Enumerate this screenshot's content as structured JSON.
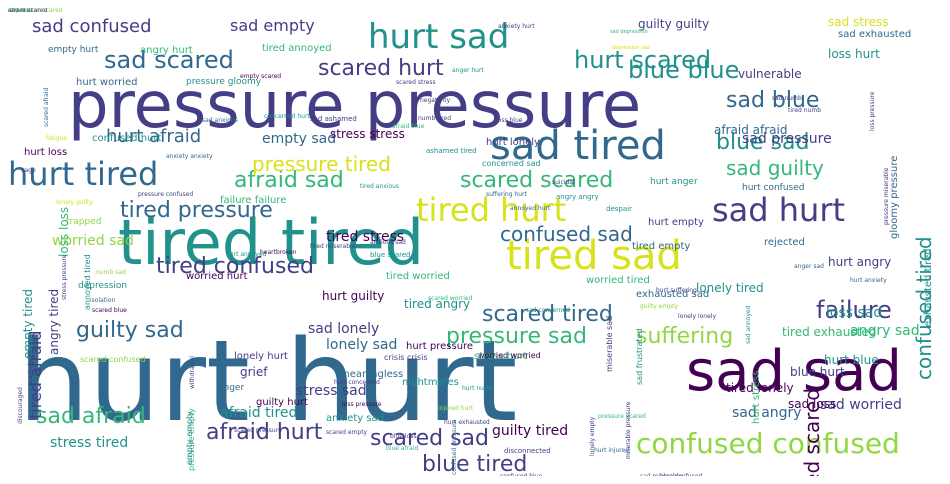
{
  "colors": {
    "c1": "#440154",
    "c2": "#433e85",
    "c3": "#31688e",
    "c4": "#21918c",
    "c5": "#35b779",
    "c6": "#90d743",
    "c7": "#d7e219",
    "c8": "#6ece58",
    "c9": "#2a788e"
  },
  "words": [
    {
      "text": "hurt hurt",
      "weight": 90,
      "color": "c3"
    },
    {
      "text": "pressure pressure",
      "weight": 62,
      "color": "c2"
    },
    {
      "text": "tired tired",
      "weight": 60,
      "color": "c4"
    },
    {
      "text": "sad sad",
      "weight": 55,
      "color": "c1"
    },
    {
      "text": "sad tired",
      "weight": 40,
      "color": "c3"
    },
    {
      "text": "tired sad",
      "weight": 40,
      "color": "c7"
    },
    {
      "text": "hurt sad",
      "weight": 34,
      "color": "c4"
    },
    {
      "text": "hurt tired",
      "weight": 32,
      "color": "c3"
    },
    {
      "text": "tired hurt",
      "weight": 32,
      "color": "c7"
    },
    {
      "text": "sad hurt",
      "weight": 32,
      "color": "c2"
    },
    {
      "text": "confused confused",
      "weight": 28,
      "color": "c6"
    },
    {
      "text": "hurt scared",
      "weight": 24,
      "color": "c4"
    },
    {
      "text": "sad scared",
      "weight": 24,
      "color": "c3"
    },
    {
      "text": "scared hurt",
      "weight": 24,
      "color": "c2"
    },
    {
      "text": "blue blue",
      "weight": 24,
      "color": "c4"
    },
    {
      "text": "sad blue",
      "weight": 22,
      "color": "c3"
    },
    {
      "text": "blue sad",
      "weight": 22,
      "color": "c4"
    },
    {
      "text": "afraid sad",
      "weight": 22,
      "color": "c5"
    },
    {
      "text": "scared scared",
      "weight": 22,
      "color": "c5"
    },
    {
      "text": "tired pressure",
      "weight": 22,
      "color": "c3"
    },
    {
      "text": "confused sad",
      "weight": 22,
      "color": "c3"
    },
    {
      "text": "tired confused",
      "weight": 22,
      "color": "c2"
    },
    {
      "text": "scared tired",
      "weight": 22,
      "color": "c3"
    },
    {
      "text": "guilty sad",
      "weight": 22,
      "color": "c3"
    },
    {
      "text": "pressure sad",
      "weight": 22,
      "color": "c5"
    },
    {
      "text": "suffering",
      "weight": 22,
      "color": "c6"
    },
    {
      "text": "failure",
      "weight": 22,
      "color": "c2"
    },
    {
      "text": "scared sad",
      "weight": 22,
      "color": "c2"
    },
    {
      "text": "afraid hurt",
      "weight": 22,
      "color": "c2"
    },
    {
      "text": "blue tired",
      "weight": 22,
      "color": "c2"
    },
    {
      "text": "sad afraid",
      "weight": 20,
      "color": "c5"
    },
    {
      "text": "pressure tired",
      "weight": 20,
      "color": "c7"
    },
    {
      "text": "sad guilty",
      "weight": 18,
      "color": "c5"
    },
    {
      "text": "hurt afraid",
      "weight": 18,
      "color": "c3"
    },
    {
      "text": "sad confused",
      "weight": 18,
      "color": "c2"
    },
    {
      "text": "sad empty",
      "weight": 16,
      "color": "c2"
    },
    {
      "text": "worried sad",
      "weight": 14,
      "color": "c6"
    },
    {
      "text": "lonely sad",
      "weight": 14,
      "color": "c3"
    },
    {
      "text": "stress tired",
      "weight": 14,
      "color": "c4"
    },
    {
      "text": "angry sad",
      "weight": 14,
      "color": "c5"
    },
    {
      "text": "loss sad",
      "weight": 14,
      "color": "c4"
    },
    {
      "text": "sad lonely",
      "weight": 14,
      "color": "c2"
    },
    {
      "text": "sad worried",
      "weight": 14,
      "color": "c2"
    },
    {
      "text": "sad angry",
      "weight": 13,
      "color": "c3"
    },
    {
      "text": "stress sad",
      "weight": 14,
      "color": "c2"
    },
    {
      "text": "afraid tired",
      "weight": 14,
      "color": "c4"
    },
    {
      "text": "tired stress",
      "weight": 14,
      "color": "c1"
    },
    {
      "text": "empty sad",
      "weight": 14,
      "color": "c3"
    },
    {
      "text": "stress stress",
      "weight": 12,
      "color": "c1"
    },
    {
      "text": "sad pressure",
      "weight": 14,
      "color": "c2"
    },
    {
      "text": "guilty tired",
      "weight": 14,
      "color": "c1"
    },
    {
      "text": "lonely tired",
      "weight": 12,
      "color": "c4"
    },
    {
      "text": "afraid afraid",
      "weight": 12,
      "color": "c3"
    },
    {
      "text": "hurt guilty",
      "weight": 12,
      "color": "c1"
    },
    {
      "text": "sad stress",
      "weight": 12,
      "color": "c7"
    },
    {
      "text": "sad loss",
      "weight": 12,
      "color": "c1"
    },
    {
      "text": "loss hurt",
      "weight": 12,
      "color": "c4"
    },
    {
      "text": "grief",
      "weight": 12,
      "color": "c2"
    },
    {
      "text": "guilty guilty",
      "weight": 12,
      "color": "c2"
    },
    {
      "text": "tired lonely",
      "weight": 12,
      "color": "c1"
    },
    {
      "text": "hurt angry",
      "weight": 12,
      "color": "c2"
    },
    {
      "text": "blue hurt",
      "weight": 12,
      "color": "c2"
    },
    {
      "text": "tired exhausted",
      "weight": 12,
      "color": "c5"
    },
    {
      "text": "vulnerable",
      "weight": 12,
      "color": "c2"
    },
    {
      "text": "sad exhausted",
      "weight": 10,
      "color": "c3"
    },
    {
      "text": "hurt blue",
      "weight": 12,
      "color": "c4"
    },
    {
      "text": "tired angry",
      "weight": 12,
      "color": "c4"
    },
    {
      "text": "hurt lonely",
      "weight": 10,
      "color": "c2"
    },
    {
      "text": "tired worried",
      "weight": 10,
      "color": "c5"
    },
    {
      "text": "worried tired",
      "weight": 10,
      "color": "c5"
    },
    {
      "text": "worried hurt",
      "weight": 10,
      "color": "c1"
    },
    {
      "text": "tired empty",
      "weight": 10,
      "color": "c3"
    },
    {
      "text": "hurt empty",
      "weight": 10,
      "color": "c2"
    },
    {
      "text": "empty hurt",
      "weight": 9,
      "color": "c3"
    },
    {
      "text": "angry hurt",
      "weight": 10,
      "color": "c5"
    },
    {
      "text": "tired annoyed",
      "weight": 10,
      "color": "c5"
    },
    {
      "text": "hurt worried",
      "weight": 10,
      "color": "c3"
    },
    {
      "text": "pressure gloomy",
      "weight": 9,
      "color": "c4"
    },
    {
      "text": "confused hurt",
      "weight": 10,
      "color": "c4"
    },
    {
      "text": "hurt loss",
      "weight": 10,
      "color": "c1"
    },
    {
      "text": "failure failure",
      "weight": 10,
      "color": "c5"
    },
    {
      "text": "hurt anger",
      "weight": 9,
      "color": "c4"
    },
    {
      "text": "hurt confused",
      "weight": 9,
      "color": "c3"
    },
    {
      "text": "rejected",
      "weight": 10,
      "color": "c3"
    },
    {
      "text": "exhausted sad",
      "weight": 10,
      "color": "c3"
    },
    {
      "text": "lonely hurt",
      "weight": 10,
      "color": "c2"
    },
    {
      "text": "stress hurt",
      "weight": 10,
      "color": "c5"
    },
    {
      "text": "hurt pressure",
      "weight": 10,
      "color": "c1"
    },
    {
      "text": "meaningless",
      "weight": 10,
      "color": "c3"
    },
    {
      "text": "guilty hurt",
      "weight": 10,
      "color": "c1"
    },
    {
      "text": "anxiety sad",
      "weight": 10,
      "color": "c4"
    },
    {
      "text": "crisis crisis",
      "weight": 8,
      "color": "c2"
    },
    {
      "text": "worried worried",
      "weight": 8,
      "color": "c1"
    },
    {
      "text": "nightmares",
      "weight": 10,
      "color": "c4"
    },
    {
      "text": "scared confused",
      "weight": 8,
      "color": "c6"
    },
    {
      "text": "anger",
      "weight": 9,
      "color": "c3"
    },
    {
      "text": "trapped",
      "weight": 9,
      "color": "c6"
    },
    {
      "text": "depression",
      "weight": 9,
      "color": "c4"
    },
    {
      "text": "empty tired",
      "weight": 12,
      "color": "c4"
    },
    {
      "text": "loss loss",
      "weight": 12,
      "color": "c5"
    },
    {
      "text": "tired afraid",
      "weight": 16,
      "color": "c2"
    },
    {
      "text": "angry tired",
      "weight": 12,
      "color": "c2"
    },
    {
      "text": "annoyed tired",
      "weight": 8,
      "color": "c4"
    },
    {
      "text": "confused tired",
      "weight": 20,
      "color": "c4"
    },
    {
      "text": "tired scared",
      "weight": 20,
      "color": "c1"
    },
    {
      "text": "exhausted tired",
      "weight": 10,
      "color": "c4"
    },
    {
      "text": "gloomy pressure",
      "weight": 10,
      "color": "c3"
    },
    {
      "text": "hurt stress",
      "weight": 10,
      "color": "c5"
    },
    {
      "text": "pressure empty",
      "weight": 8,
      "color": "c5"
    },
    {
      "text": "empty empty",
      "weight": 8,
      "color": "c4"
    },
    {
      "text": "concerned sad",
      "weight": 8,
      "color": "c4"
    },
    {
      "text": "ashamed tired",
      "weight": 7,
      "color": "c4"
    },
    {
      "text": "sad ashamed",
      "weight": 7,
      "color": "c2"
    },
    {
      "text": "sad anxious",
      "weight": 6,
      "color": "c3"
    },
    {
      "text": "anxiety anxiety",
      "weight": 6,
      "color": "c3"
    },
    {
      "text": "suffering hurt",
      "weight": 6,
      "color": "c3"
    },
    {
      "text": "angry angry",
      "weight": 7,
      "color": "c4"
    },
    {
      "text": "annoyed hurt",
      "weight": 6,
      "color": "c3"
    },
    {
      "text": "despair",
      "weight": 7,
      "color": "c4"
    },
    {
      "text": "hurt annoyed",
      "weight": 6,
      "color": "c4"
    },
    {
      "text": "heartbroken",
      "weight": 6,
      "color": "c1"
    },
    {
      "text": "tired miserable",
      "weight": 6,
      "color": "c2"
    },
    {
      "text": "blue scared",
      "weight": 7,
      "color": "c4"
    },
    {
      "text": "hurt suffering",
      "weight": 6,
      "color": "c2"
    },
    {
      "text": "guilty empty",
      "weight": 6,
      "color": "c6"
    },
    {
      "text": "lonely lonely",
      "weight": 6,
      "color": "c2"
    },
    {
      "text": "hurt concerned",
      "weight": 6,
      "color": "c2"
    },
    {
      "text": "scared pressure",
      "weight": 6,
      "color": "c2"
    },
    {
      "text": "scared empty",
      "weight": 6,
      "color": "c2"
    },
    {
      "text": "blue loss",
      "weight": 6,
      "color": "c2"
    },
    {
      "text": "blue afraid",
      "weight": 6,
      "color": "c5"
    },
    {
      "text": "disconnected",
      "weight": 7,
      "color": "c2"
    },
    {
      "text": "confused blue",
      "weight": 6,
      "color": "c2"
    },
    {
      "text": "hurt injured",
      "weight": 6,
      "color": "c3"
    },
    {
      "text": "sad miserable",
      "weight": 6,
      "color": "c3"
    },
    {
      "text": "blue confused",
      "weight": 6,
      "color": "c2"
    },
    {
      "text": "pressure scared",
      "weight": 6,
      "color": "c5"
    },
    {
      "text": "hurt exhausted",
      "weight": 6,
      "color": "c2"
    },
    {
      "text": "hurt numb",
      "weight": 6,
      "color": "c4"
    },
    {
      "text": "injured hurt",
      "weight": 6,
      "color": "c6"
    },
    {
      "text": "loss pressure",
      "weight": 6,
      "color": "c1"
    },
    {
      "text": "scared worried",
      "weight": 6,
      "color": "c5"
    },
    {
      "text": "anger sad",
      "weight": 6,
      "color": "c3"
    },
    {
      "text": "hurt anxiety",
      "weight": 6,
      "color": "c3"
    },
    {
      "text": "numb sad",
      "weight": 6,
      "color": "c6"
    },
    {
      "text": "scared blue",
      "weight": 6,
      "color": "c1"
    },
    {
      "text": "isolation",
      "weight": 6,
      "color": "c3"
    },
    {
      "text": "anxiety hurt",
      "weight": 6,
      "color": "c2"
    },
    {
      "text": "sad depression",
      "weight": 6,
      "color": "c5"
    },
    {
      "text": "depression sad",
      "weight": 5,
      "color": "c7"
    },
    {
      "text": "anger hurt",
      "weight": 6,
      "color": "c4"
    },
    {
      "text": "empty scared",
      "weight": 5,
      "color": "c1"
    },
    {
      "text": "scared stress",
      "weight": 6,
      "color": "c2"
    },
    {
      "text": "negativity",
      "weight": 6,
      "color": "c2"
    },
    {
      "text": "sad numb",
      "weight": 6,
      "color": "c2"
    },
    {
      "text": "tired numb",
      "weight": 6,
      "color": "c2"
    },
    {
      "text": "loss blue",
      "weight": 6,
      "color": "c2"
    },
    {
      "text": "afraid blue",
      "weight": 6,
      "color": "c5"
    },
    {
      "text": "concerned hurt",
      "weight": 6,
      "color": "c4"
    },
    {
      "text": "numb tired",
      "weight": 6,
      "color": "c2"
    },
    {
      "text": "fatigue",
      "weight": 6,
      "color": "c7"
    },
    {
      "text": "rage",
      "weight": 6,
      "color": "c2"
    },
    {
      "text": "pressure confused",
      "weight": 6,
      "color": "c2"
    },
    {
      "text": "lonely guilty",
      "weight": 6,
      "color": "c7"
    },
    {
      "text": "tired anxious",
      "weight": 6,
      "color": "c4"
    },
    {
      "text": "anxious sad",
      "weight": 6,
      "color": "c2"
    },
    {
      "text": "suicidal",
      "weight": 6,
      "color": "c2"
    },
    {
      "text": "miserable sad",
      "weight": 6,
      "color": "c2"
    },
    {
      "text": "sad frustrated",
      "weight": 6,
      "color": "c4"
    },
    {
      "text": "sad annoyed",
      "weight": 8,
      "color": "c4"
    },
    {
      "text": "sad concerned",
      "weight": 8,
      "color": "c4"
    },
    {
      "text": "loss pressure",
      "weight": 6,
      "color": "c2"
    },
    {
      "text": "worried sad",
      "weight": 6,
      "color": "c2"
    },
    {
      "text": "discouraged",
      "weight": 6,
      "color": "c2"
    },
    {
      "text": "withdrawal",
      "weight": 6,
      "color": "c2"
    },
    {
      "text": "stress pressure",
      "weight": 6,
      "color": "c2"
    },
    {
      "text": "confused pressure",
      "weight": 6,
      "color": "c3"
    },
    {
      "text": "scared afraid",
      "weight": 6,
      "color": "c3"
    },
    {
      "text": "pressure miserable",
      "weight": 6,
      "color": "c2"
    },
    {
      "text": "miserable pressure",
      "weight": 6,
      "color": "c2"
    },
    {
      "text": "lonely empty",
      "weight": 6,
      "color": "c2"
    },
    {
      "text": "depression scared",
      "weight": 6,
      "color": "c6"
    },
    {
      "text": "sad hurt",
      "weight": 6,
      "color": "c4"
    },
    {
      "text": "afraid scared",
      "weight": 6,
      "color": "c2"
    }
  ]
}
